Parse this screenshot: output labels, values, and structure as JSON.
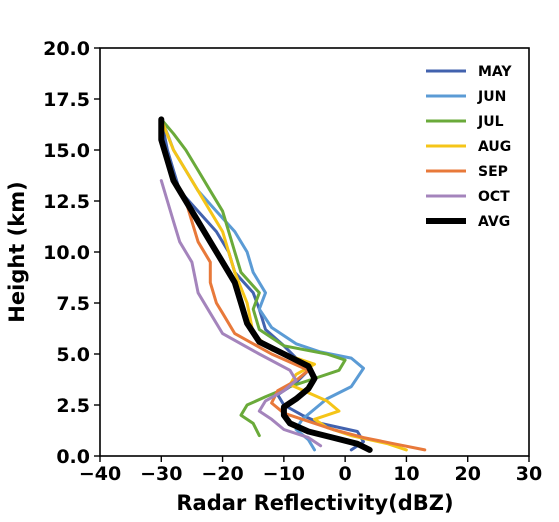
{
  "chart_data": {
    "type": "line",
    "xlabel": "Radar Reflectivity(dBZ)",
    "ylabel": "Height (km)",
    "xlim": [
      -40,
      30
    ],
    "ylim": [
      0,
      20
    ],
    "xticks": [
      -40,
      -30,
      -20,
      -10,
      0,
      10,
      20,
      30
    ],
    "yticks": [
      0.0,
      2.5,
      5.0,
      7.5,
      10.0,
      12.5,
      15.0,
      17.5,
      20.0
    ],
    "xtick_labels": [
      "−40",
      "−30",
      "−20",
      "−10",
      "0",
      "10",
      "20",
      "30"
    ],
    "ytick_labels": [
      "0.0",
      "2.5",
      "5.0",
      "7.5",
      "10.0",
      "12.5",
      "15.0",
      "17.5",
      "20.0"
    ],
    "grid": false,
    "legend_position": "top-right",
    "series": [
      {
        "name": "MAY",
        "color": "#4262ae",
        "width": 3,
        "x": [
          1,
          3,
          2,
          -4,
          -7,
          -10,
          -11,
          -8,
          -6,
          -8,
          -10,
          -13,
          -14,
          -15,
          -18,
          -19,
          -21,
          -24,
          -27,
          -28,
          -29,
          -30
        ],
        "y": [
          0.3,
          0.7,
          1.2,
          1.6,
          2.0,
          2.5,
          3.0,
          3.6,
          4.2,
          4.8,
          5.4,
          6.2,
          7.2,
          8.0,
          9.0,
          10.0,
          11.0,
          12.0,
          13.0,
          14.0,
          15.0,
          16.5
        ]
      },
      {
        "name": "JUN",
        "color": "#5b9bd5",
        "width": 3,
        "x": [
          -5,
          -6,
          -8,
          -7,
          -5,
          -3,
          1,
          3,
          1,
          -4,
          -8,
          -12,
          -14,
          -13,
          -15,
          -16,
          -18,
          -21,
          -24,
          -26,
          -28,
          -29,
          -30
        ],
        "y": [
          0.3,
          0.8,
          1.3,
          1.8,
          2.3,
          2.8,
          3.4,
          4.3,
          4.8,
          5.1,
          5.5,
          6.3,
          7.2,
          8.0,
          9.0,
          10.0,
          11.0,
          12.0,
          13.0,
          14.0,
          15.0,
          15.8,
          16.5
        ]
      },
      {
        "name": "JUL",
        "color": "#6aaa3a",
        "width": 3,
        "x": [
          -14,
          -15,
          -17,
          -16,
          -13,
          -9,
          -5,
          -1,
          0,
          -3,
          -10,
          -14,
          -15,
          -14,
          -17,
          -18,
          -19,
          -20,
          -22,
          -24,
          -26,
          -28,
          -30
        ],
        "y": [
          1.0,
          1.6,
          2.0,
          2.5,
          2.9,
          3.4,
          3.8,
          4.2,
          4.7,
          5.0,
          5.4,
          6.2,
          7.2,
          8.0,
          9.0,
          10.0,
          11.0,
          12.0,
          13.0,
          14.0,
          15.0,
          15.8,
          16.5
        ]
      },
      {
        "name": "AUG",
        "color": "#f5c518",
        "width": 3,
        "x": [
          10,
          7,
          1,
          -3,
          -5,
          -1,
          -3,
          -6,
          -9,
          -8,
          -5,
          -12,
          -15,
          -16,
          -18,
          -19,
          -20,
          -22,
          -24,
          -26,
          -28,
          -30
        ],
        "y": [
          0.3,
          0.6,
          1.0,
          1.4,
          1.8,
          2.2,
          2.7,
          3.1,
          3.5,
          4.0,
          4.5,
          5.2,
          6.0,
          7.5,
          9.0,
          10.0,
          11.0,
          12.0,
          13.0,
          14.0,
          15.0,
          16.5
        ]
      },
      {
        "name": "SEP",
        "color": "#e8793a",
        "width": 3,
        "x": [
          13,
          8,
          3,
          -2,
          -6,
          -10,
          -12,
          -11,
          -8,
          -6,
          -12,
          -18,
          -20,
          -21,
          -22,
          -22,
          -24,
          -25,
          -26,
          -27
        ],
        "y": [
          0.3,
          0.6,
          0.9,
          1.3,
          1.7,
          2.1,
          2.6,
          3.2,
          3.7,
          4.2,
          5.0,
          6.0,
          7.0,
          7.5,
          8.5,
          9.5,
          10.5,
          11.5,
          12.5,
          13.0
        ]
      },
      {
        "name": "OCT",
        "color": "#a484bc",
        "width": 3,
        "x": [
          -4,
          -6,
          -10,
          -12,
          -14,
          -13,
          -10,
          -8,
          -9,
          -14,
          -20,
          -22,
          -24,
          -25,
          -27,
          -28,
          -29,
          -30
        ],
        "y": [
          0.5,
          0.9,
          1.3,
          1.8,
          2.2,
          2.7,
          3.2,
          3.7,
          4.2,
          5.0,
          6.0,
          7.0,
          8.0,
          9.5,
          10.5,
          11.5,
          12.5,
          13.5
        ]
      },
      {
        "name": "AVG",
        "color": "#000000",
        "width": 6,
        "x": [
          4,
          2,
          -2,
          -6,
          -9,
          -10,
          -10,
          -8,
          -6,
          -5,
          -6,
          -10,
          -14,
          -16,
          -17,
          -18,
          -20,
          -22,
          -24,
          -26,
          -28,
          -29,
          -30,
          -30
        ],
        "y": [
          0.3,
          0.6,
          0.9,
          1.2,
          1.6,
          2.0,
          2.4,
          2.8,
          3.3,
          3.8,
          4.4,
          5.0,
          5.6,
          6.5,
          7.5,
          8.5,
          9.5,
          10.5,
          11.5,
          12.5,
          13.5,
          14.5,
          15.5,
          16.5
        ]
      }
    ]
  }
}
